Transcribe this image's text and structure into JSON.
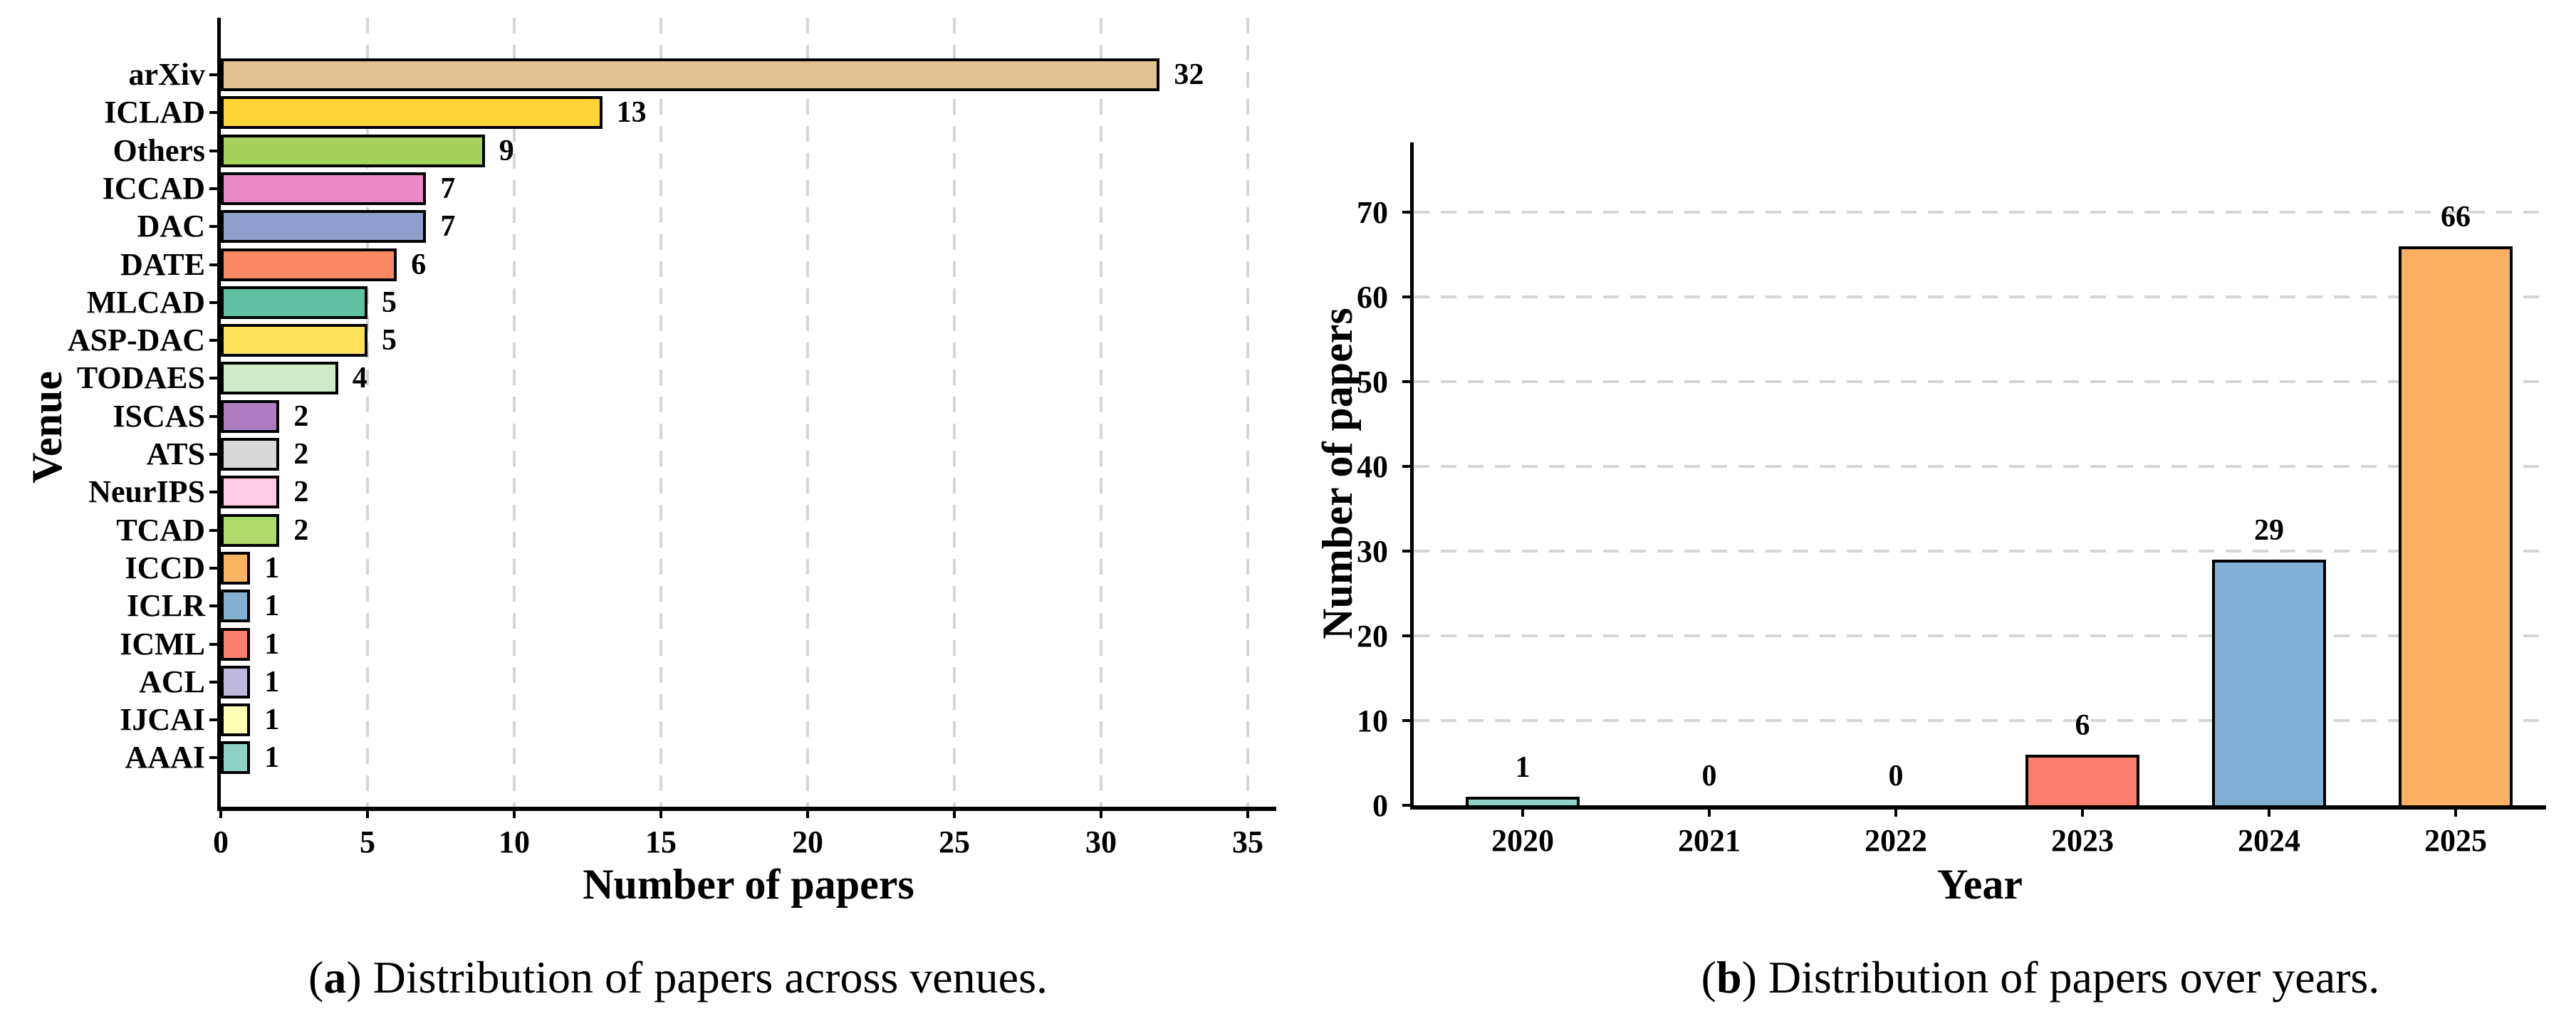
{
  "figure": {
    "captions": [
      {
        "label": "a",
        "text": "Distribution of papers across venues."
      },
      {
        "label": "b",
        "text": "Distribution of papers over years."
      }
    ]
  },
  "colors": {
    "axis": "#000000",
    "gridline": "#d6d6d6",
    "bar_outline": "#000000"
  },
  "chart_data": [
    {
      "type": "bar",
      "orientation": "horizontal",
      "title": "",
      "xlabel": "Number of papers",
      "ylabel": "Venue",
      "xlim": [
        0,
        36
      ],
      "xticks": [
        0,
        5,
        10,
        15,
        20,
        25,
        30,
        35
      ],
      "grid": "vertical-dashed",
      "categories": [
        "arXiv",
        "ICLAD",
        "Others",
        "ICCAD",
        "DAC",
        "DATE",
        "MLCAD",
        "ASP-DAC",
        "TODAES",
        "ISCAS",
        "ATS",
        "NeurIPS",
        "TCAD",
        "ICCD",
        "ICLR",
        "ICML",
        "ACL",
        "IJCAI",
        "AAAI"
      ],
      "values": [
        32,
        13,
        9,
        7,
        7,
        6,
        5,
        5,
        4,
        2,
        2,
        2,
        2,
        1,
        1,
        1,
        1,
        1,
        1
      ],
      "bar_value_labels": [
        "32",
        "13",
        "9",
        "7",
        "7",
        "6",
        "5",
        "5",
        "4",
        "2",
        "2",
        "2",
        "2",
        "1",
        "1",
        "1",
        "1",
        "1",
        "1"
      ],
      "colors": [
        "#E2C391",
        "#FDD335",
        "#A5D25A",
        "#E98AC4",
        "#8F9FCB",
        "#FA8A63",
        "#62C0A2",
        "#FDE45C",
        "#CDEBC6",
        "#AE7CC1",
        "#D8D8D8",
        "#FCCDE5",
        "#AEDB69",
        "#FBB462",
        "#82B0D2",
        "#FA7F6F",
        "#BEB8DC",
        "#FEFFB4",
        "#8DD2C5"
      ]
    },
    {
      "type": "bar",
      "orientation": "vertical",
      "title": "",
      "xlabel": "Year",
      "ylabel": "Number of papers",
      "ylim": [
        0,
        78
      ],
      "yticks": [
        0,
        10,
        20,
        30,
        40,
        50,
        60,
        70
      ],
      "grid": "horizontal-dashed",
      "categories": [
        "2020",
        "2021",
        "2022",
        "2023",
        "2024",
        "2025"
      ],
      "values": [
        1,
        0,
        0,
        6,
        29,
        66
      ],
      "bar_value_labels": [
        "1",
        "0",
        "0",
        "6",
        "29",
        "66"
      ],
      "colors": [
        "#8DD2C5",
        null,
        null,
        "#FA7F6F",
        "#82B0D2",
        "#FAB163"
      ]
    }
  ]
}
